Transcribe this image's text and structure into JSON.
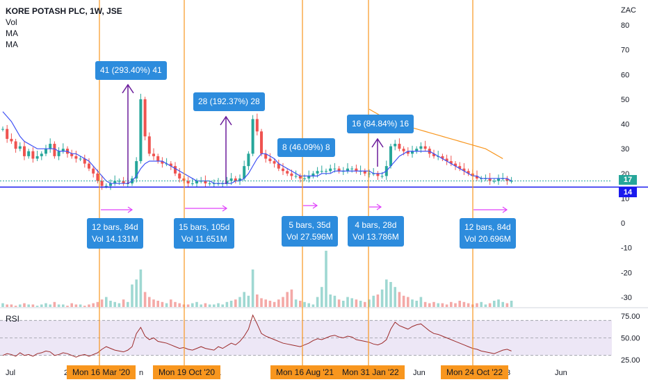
{
  "legend": {
    "title": "KORE POTASH PLC, 1W, JSE",
    "vol": "Vol",
    "ma1": "MA",
    "ma2": "MA"
  },
  "rsi_label": "RSI",
  "currency": "ZAC",
  "price_tags": {
    "last": "17",
    "line": "14"
  },
  "colors": {
    "up": "#26a69a",
    "down": "#ef5350",
    "ma_blue": "#3f51f5",
    "ma_orange": "#f8961e",
    "support": "#1a1aee",
    "vline": "#f8961e",
    "callout": "#2d8cdd",
    "arrow_pink": "#e040fb",
    "arrow_purple": "#6a1b9a",
    "rsi": "#9c2a2a",
    "rsi_band": "#ede7f6"
  },
  "measurements": [
    {
      "gain_label": "41 (293.40%) 41",
      "bars_label": "12 bars, 84d",
      "vol_label": "Vol 14.131M"
    },
    {
      "gain_label": "28 (192.37%) 28",
      "bars_label": "15 bars, 105d",
      "vol_label": "Vol 11.651M"
    },
    {
      "gain_label": "8 (46.09%) 8",
      "bars_label": "5 bars, 35d",
      "vol_label": "Vol 27.596M"
    },
    {
      "gain_label": "16 (84.84%) 16",
      "bars_label": "4 bars, 28d",
      "vol_label": "Vol 13.786M"
    },
    {
      "gain_label": "",
      "bars_label": "12 bars, 84d",
      "vol_label": "Vol 20.696M"
    }
  ],
  "date_markers": [
    "Mon 16 Mar '20",
    "Mon 19 Oct '20",
    "Mon 16 Aug '21",
    "Mon 31 Jan '22",
    "Mon 24 Oct '22"
  ],
  "chart_data": {
    "type": "line",
    "title": "KORE POTASH PLC, 1W, JSE",
    "price_axis": {
      "ticks": [
        80,
        70,
        60,
        50,
        40,
        30,
        20,
        10,
        0,
        -10,
        -20,
        -30
      ],
      "ylim": [
        -32,
        84
      ],
      "unit": "ZAC"
    },
    "rsi_axis": {
      "ticks": [
        "75.00",
        "50.00",
        "25.00"
      ],
      "ylim": [
        22,
        78
      ],
      "bands": [
        30,
        50,
        70
      ]
    },
    "x_ticks": [
      "Jul",
      "2",
      "n",
      "1",
      "Jun",
      "3",
      "Jun"
    ],
    "support_level": 14.5,
    "last_price": 17,
    "series": [
      {
        "name": "price",
        "values": [
          38,
          34,
          33,
          30,
          31,
          27,
          29,
          26,
          27,
          28,
          30,
          32,
          27,
          29,
          30,
          28,
          27,
          26,
          26,
          24,
          22,
          20,
          17,
          15,
          15,
          16,
          17,
          17,
          16,
          16,
          18,
          25,
          50,
          35,
          28,
          27,
          25,
          24,
          24,
          23,
          20,
          18,
          17,
          16,
          16,
          17,
          17,
          16,
          16,
          16,
          16,
          16,
          17,
          18,
          17,
          18,
          23,
          28,
          42,
          37,
          28,
          26,
          25,
          24,
          22,
          21,
          20,
          19,
          19,
          18,
          18,
          19,
          20,
          21,
          21,
          21,
          22,
          22,
          21,
          21,
          22,
          22,
          21,
          21,
          20,
          20,
          20,
          19,
          19,
          23,
          31,
          32,
          30,
          29,
          28,
          29,
          30,
          31,
          30,
          28,
          27,
          27,
          26,
          25,
          24,
          23,
          22,
          21,
          20,
          19,
          18,
          18,
          18,
          17,
          17,
          18,
          18,
          17,
          17
        ]
      },
      {
        "name": "ma_fast",
        "values": [
          45,
          43,
          41,
          38,
          35,
          33,
          32,
          31,
          30,
          30,
          30,
          30,
          30,
          29,
          29,
          29,
          28,
          28,
          27,
          26,
          25,
          23,
          21,
          19,
          17,
          16,
          16,
          16,
          16,
          16,
          17,
          19,
          22,
          24,
          25,
          25,
          25,
          25,
          24,
          23,
          22,
          21,
          20,
          19,
          18,
          17,
          17,
          17,
          17,
          16,
          16,
          16,
          16,
          16,
          17,
          17,
          18,
          20,
          23,
          26,
          28,
          28,
          27,
          26,
          24,
          23,
          22,
          21,
          20,
          19,
          19,
          19,
          19,
          19,
          20,
          20,
          20,
          21,
          21,
          21,
          21,
          21,
          21,
          21,
          21,
          21,
          20,
          20,
          20,
          21,
          23,
          25,
          27,
          28,
          29,
          29,
          29,
          29,
          29,
          29,
          28,
          27,
          26,
          25,
          24,
          23,
          22,
          21,
          20,
          19,
          19,
          18,
          18,
          18,
          18,
          18,
          18,
          18,
          17
        ]
      },
      {
        "name": "ma_slow",
        "start_index": 85,
        "values": [
          46,
          45,
          44,
          43,
          42,
          41,
          40.5,
          40,
          39.5,
          39,
          38.5,
          38,
          37.5,
          37,
          36.5,
          36,
          35.5,
          35,
          34.5,
          34,
          33.5,
          33,
          32.5,
          32,
          31.5,
          31,
          30.5,
          30,
          29,
          28,
          27,
          26
        ]
      },
      {
        "name": "volume",
        "values": [
          3,
          2,
          2,
          1,
          2,
          3,
          2,
          2,
          1,
          2,
          3,
          2,
          4,
          2,
          2,
          1,
          3,
          2,
          2,
          1,
          2,
          3,
          4,
          6,
          8,
          5,
          4,
          3,
          6,
          4,
          18,
          22,
          30,
          12,
          8,
          6,
          5,
          4,
          3,
          6,
          4,
          3,
          2,
          2,
          3,
          4,
          2,
          3,
          2,
          2,
          3,
          2,
          4,
          5,
          6,
          8,
          12,
          9,
          30,
          10,
          7,
          6,
          5,
          4,
          6,
          8,
          12,
          14,
          6,
          5,
          4,
          3,
          2,
          8,
          16,
          45,
          10,
          9,
          6,
          5,
          8,
          7,
          6,
          5,
          4,
          6,
          9,
          10,
          14,
          22,
          20,
          16,
          12,
          9,
          8,
          6,
          5,
          8,
          4,
          3,
          4,
          3,
          3,
          2,
          4,
          3,
          5,
          4,
          3,
          2,
          3,
          4,
          2,
          3,
          5,
          6,
          4,
          3,
          5
        ]
      },
      {
        "name": "rsi",
        "values": [
          30,
          32,
          31,
          29,
          33,
          30,
          31,
          29,
          32,
          33,
          35,
          34,
          30,
          31,
          33,
          32,
          30,
          28,
          30,
          31,
          29,
          31,
          33,
          37,
          40,
          38,
          36,
          35,
          34,
          36,
          40,
          55,
          62,
          52,
          48,
          50,
          46,
          45,
          44,
          42,
          40,
          38,
          39,
          37,
          36,
          38,
          40,
          38,
          37,
          36,
          40,
          38,
          41,
          44,
          42,
          46,
          52,
          60,
          76,
          66,
          55,
          52,
          50,
          48,
          46,
          44,
          43,
          42,
          41,
          40,
          42,
          44,
          47,
          49,
          48,
          50,
          52,
          53,
          51,
          50,
          52,
          51,
          48,
          47,
          46,
          45,
          43,
          42,
          44,
          48,
          60,
          68,
          64,
          62,
          60,
          63,
          65,
          66,
          62,
          58,
          55,
          54,
          52,
          50,
          48,
          46,
          44,
          42,
          40,
          38,
          37,
          35,
          34,
          33,
          32,
          34,
          36,
          37,
          35
        ]
      }
    ]
  }
}
